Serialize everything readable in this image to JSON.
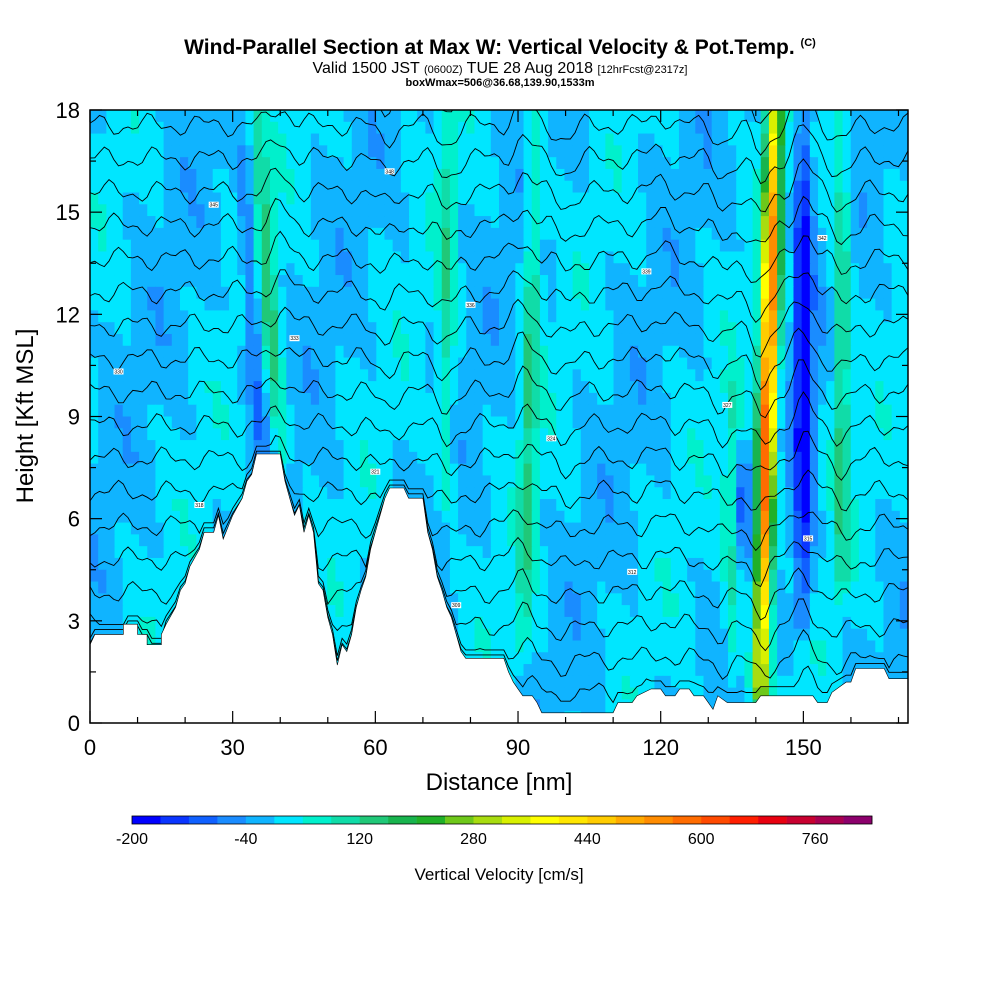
{
  "chart_data": {
    "type": "heatmap",
    "title": "Wind-Parallel Section at Max W: Vertical Velocity & Pot.Temp.",
    "title_mark": "(C)",
    "subtitle_parts": [
      "Valid 1500 JST",
      "(0600Z)",
      "TUE 28 Aug 2018",
      "[12hrFcst@2317z]"
    ],
    "sub_subtitle": "boxWmax=506@36.68,139.90,1533m",
    "xlabel": "Distance [nm]",
    "ylabel": "Height [Kft MSL]",
    "xlim": [
      0,
      172
    ],
    "ylim": [
      0,
      18
    ],
    "x_ticks": [
      "0",
      "30",
      "60",
      "90",
      "120",
      "150"
    ],
    "y_ticks": [
      "0",
      "3",
      "6",
      "9",
      "12",
      "15",
      "18"
    ],
    "colorbar": {
      "label": "Vertical Velocity [cm/s]",
      "tick_labels": [
        "-200",
        "-40",
        "120",
        "280",
        "440",
        "600",
        "760"
      ],
      "min": -200,
      "max": 840,
      "step": 40,
      "colors": [
        "#0000ff",
        "#0a35ff",
        "#1060ff",
        "#1a8cff",
        "#10b4ff",
        "#00e6ff",
        "#00f0cc",
        "#10dca8",
        "#20c878",
        "#18b44e",
        "#20b028",
        "#6ec81a",
        "#a8dc10",
        "#d8f000",
        "#ffff00",
        "#ffe600",
        "#ffcc00",
        "#ffaa00",
        "#ff8c00",
        "#ff6c00",
        "#ff4a00",
        "#ff1e00",
        "#e80010",
        "#c80030",
        "#a80050",
        "#8c006c"
      ]
    },
    "background_value": 0,
    "updrafts": [
      {
        "x": 40,
        "y_bottom": 7.9,
        "y_top": 18,
        "tilt_x": -5,
        "peak": 140
      },
      {
        "x": 75,
        "y_bottom": 6.5,
        "y_top": 18,
        "tilt_x": 0,
        "peak": 100
      },
      {
        "x": 91,
        "y_bottom": 2,
        "y_top": 18,
        "tilt_x": 3,
        "peak": 120
      },
      {
        "x": 135,
        "y_bottom": 1.2,
        "y_top": 10,
        "tilt_x": 0,
        "peak": 100
      },
      {
        "x": 141,
        "y_bottom": 1,
        "y_top": 18,
        "tilt_x": 3,
        "peak": 620
      },
      {
        "x": 158,
        "y_bottom": 4,
        "y_top": 18,
        "tilt_x": 0,
        "peak": 140
      }
    ],
    "downdrafts": [
      {
        "x": 36,
        "y_bottom": 8,
        "y_top": 16.5,
        "tilt_x": -4,
        "peak": -100
      },
      {
        "x": 150,
        "y_bottom": 3,
        "y_top": 18,
        "tilt_x": 0,
        "peak": -200
      },
      {
        "x": 137,
        "y_bottom": 5,
        "y_top": 8,
        "tilt_x": 0,
        "peak": -100
      }
    ],
    "terrain_kft": [
      [
        0,
        2.3
      ],
      [
        1,
        2.6
      ],
      [
        7,
        2.6
      ],
      [
        7,
        2.9
      ],
      [
        10,
        2.9
      ],
      [
        10,
        2.6
      ],
      [
        12,
        2.6
      ],
      [
        12,
        2.3
      ],
      [
        15,
        2.3
      ],
      [
        15,
        2.6
      ],
      [
        16,
        2.9
      ],
      [
        18,
        3.4
      ],
      [
        19,
        3.9
      ],
      [
        20,
        4.1
      ],
      [
        21,
        4.6
      ],
      [
        23,
        5.1
      ],
      [
        24,
        5.6
      ],
      [
        26,
        5.6
      ],
      [
        27,
        6.1
      ],
      [
        28,
        5.4
      ],
      [
        30,
        6.1
      ],
      [
        32,
        6.6
      ],
      [
        33,
        7.1
      ],
      [
        34,
        7.3
      ],
      [
        35,
        7.9
      ],
      [
        40,
        7.9
      ],
      [
        41,
        7.1
      ],
      [
        42,
        6.6
      ],
      [
        43,
        6.1
      ],
      [
        44,
        6.4
      ],
      [
        45,
        5.6
      ],
      [
        46,
        6.1
      ],
      [
        47,
        5.6
      ],
      [
        48,
        4.1
      ],
      [
        49,
        3.9
      ],
      [
        50,
        3.1
      ],
      [
        51,
        2.6
      ],
      [
        52,
        1.7
      ],
      [
        53,
        2.3
      ],
      [
        54,
        2.1
      ],
      [
        55,
        2.6
      ],
      [
        56,
        3.4
      ],
      [
        57,
        3.9
      ],
      [
        58,
        4.3
      ],
      [
        59,
        5.1
      ],
      [
        60,
        5.6
      ],
      [
        61,
        6.1
      ],
      [
        62,
        6.6
      ],
      [
        63,
        6.9
      ],
      [
        66,
        6.9
      ],
      [
        67,
        6.6
      ],
      [
        70,
        6.6
      ],
      [
        71,
        5.6
      ],
      [
        72,
        5.1
      ],
      [
        73,
        4.3
      ],
      [
        74,
        3.9
      ],
      [
        75,
        3.4
      ],
      [
        76,
        3.1
      ],
      [
        78,
        2.1
      ],
      [
        79,
        1.9
      ],
      [
        87,
        1.9
      ],
      [
        88,
        1.5
      ],
      [
        89,
        1.2
      ],
      [
        90,
        1.0
      ],
      [
        91,
        0.8
      ],
      [
        93,
        0.8
      ],
      [
        94,
        0.6
      ],
      [
        95,
        0.3
      ],
      [
        110,
        0.3
      ],
      [
        111,
        0.6
      ],
      [
        114,
        0.6
      ],
      [
        115,
        0.8
      ],
      [
        118,
        1.0
      ],
      [
        120,
        1.0
      ],
      [
        121,
        0.8
      ],
      [
        123,
        0.8
      ],
      [
        124,
        1.0
      ],
      [
        126,
        1.0
      ],
      [
        127,
        0.8
      ],
      [
        129,
        0.8
      ],
      [
        130,
        0.6
      ],
      [
        131,
        0.4
      ],
      [
        132,
        0.8
      ],
      [
        134,
        0.6
      ],
      [
        140,
        0.6
      ],
      [
        141,
        0.8
      ],
      [
        152,
        0.8
      ],
      [
        153,
        0.6
      ],
      [
        155,
        0.6
      ],
      [
        156,
        0.9
      ],
      [
        158,
        1.1
      ],
      [
        159,
        1.2
      ],
      [
        160,
        1.2
      ],
      [
        161,
        1.6
      ],
      [
        167,
        1.6
      ],
      [
        168,
        1.3
      ],
      [
        172,
        1.3
      ]
    ],
    "isentrope_labels": [
      "303",
      "306",
      "309",
      "312",
      "315",
      "318",
      "321",
      "324",
      "327",
      "330",
      "333",
      "336",
      "339",
      "342",
      "345",
      "348"
    ]
  }
}
